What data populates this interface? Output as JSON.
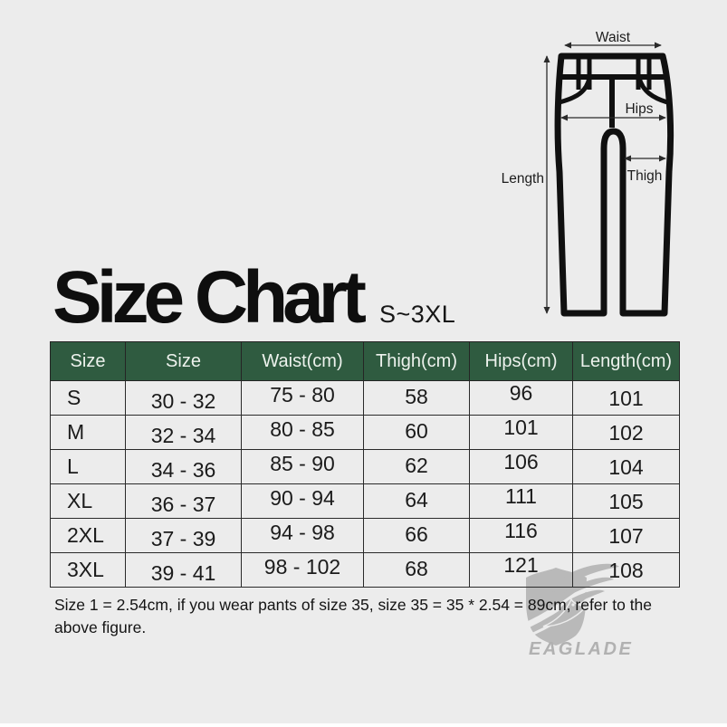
{
  "colors": {
    "page_bg": "#ececec",
    "header_bg": "#2f5b40",
    "header_text": "#edf2ed",
    "body_text": "#1b1b1b",
    "outline": "#101010",
    "watermark": "#b9b9b9"
  },
  "title": {
    "text": "Size Chart",
    "range": "S~3XL"
  },
  "diagram": {
    "labels": {
      "waist": "Waist",
      "hips": "Hips",
      "thigh": "Thigh",
      "length": "Length"
    }
  },
  "chart_data": {
    "type": "table",
    "title": "Size Chart",
    "subtitle": "S~3XL",
    "columns": [
      "Size",
      "Size",
      "Waist(cm)",
      "Thigh(cm)",
      "Hips(cm)",
      "Length(cm)"
    ],
    "rows": [
      [
        "S",
        "30 - 32",
        "75 - 80",
        "58",
        "96",
        "101"
      ],
      [
        "M",
        "32 - 34",
        "80 - 85",
        "60",
        "101",
        "102"
      ],
      [
        "L",
        "34 - 36",
        "85 - 90",
        "62",
        "106",
        "104"
      ],
      [
        "XL",
        "36 - 37",
        "90 - 94",
        "64",
        "111",
        "105"
      ],
      [
        "2XL",
        "37 - 39",
        "94 - 98",
        "66",
        "116",
        "107"
      ],
      [
        "3XL",
        "39 - 41",
        "98 - 102",
        "68",
        "121",
        "108"
      ]
    ]
  },
  "note": {
    "lines": [
      "Size 1 = 2.54cm, if you wear pants of size 35, size 35 = 35 * 2.54 = 89cm, refer to the",
      "above figure."
    ]
  },
  "brand": {
    "name": "EAGLADE"
  }
}
